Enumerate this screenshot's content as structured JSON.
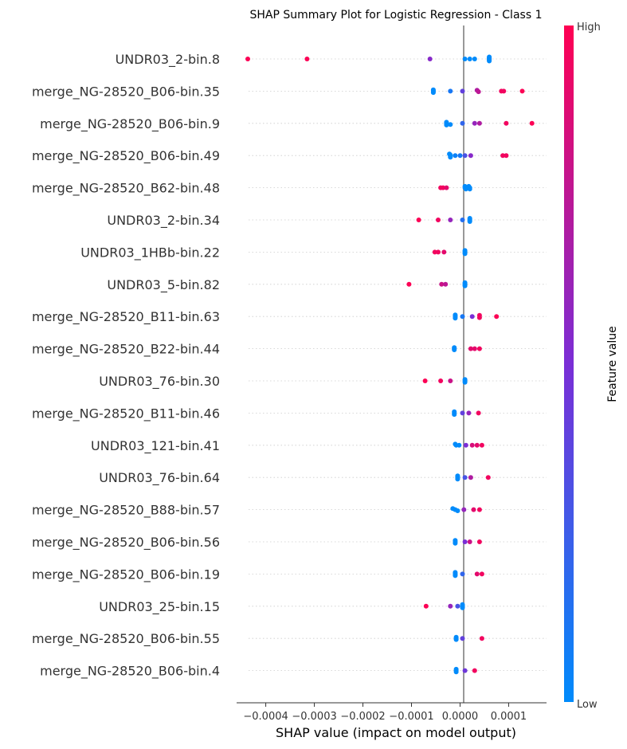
{
  "chart_data": {
    "type": "scatter",
    "title": "SHAP Summary Plot for Logistic Regression - Class 1",
    "xlabel": "SHAP value (impact on model output)",
    "xlim": [
      -0.00046,
      0.000178
    ],
    "xticks": [
      {
        "value": -0.0004,
        "label": "−0.0004"
      },
      {
        "value": -0.0003,
        "label": "−0.0003"
      },
      {
        "value": -0.0002,
        "label": "−0.0002"
      },
      {
        "value": -0.0001,
        "label": "−0.0001"
      },
      {
        "value": 0.0,
        "label": "0.0000"
      },
      {
        "value": 0.0001,
        "label": "0.0001"
      }
    ],
    "colorbar": {
      "title": "Feature value",
      "high_label": "High",
      "low_label": "Low",
      "low_color": "#008bfb",
      "high_color": "#ff0052"
    },
    "features": [
      {
        "name": "UNDR03_2-bin.8",
        "points": [
          [
            -0.000437,
            0.99,
            0
          ],
          [
            -0.000315,
            0.99,
            0
          ],
          [
            -6.2e-05,
            0.55,
            0
          ],
          [
            1e-05,
            0.0,
            0
          ],
          [
            2e-05,
            0.0,
            0
          ],
          [
            3e-05,
            0.0,
            0
          ],
          [
            6e-05,
            0.0,
            -0.12
          ],
          [
            6e-05,
            0.0,
            -0.06
          ],
          [
            6e-05,
            0.0,
            0
          ],
          [
            6e-05,
            0.0,
            0.06
          ],
          [
            6e-05,
            0.0,
            0.12
          ],
          [
            6e-05,
            0.0,
            -0.18
          ],
          [
            6e-05,
            0.0,
            0.18
          ]
        ]
      },
      {
        "name": "merge_NG-28520_B06-bin.35",
        "points": [
          [
            -5.5e-05,
            0.0,
            -0.12
          ],
          [
            -5.5e-05,
            0.0,
            -0.04
          ],
          [
            -5.5e-05,
            0.0,
            0.04
          ],
          [
            -5.5e-05,
            0.0,
            0.12
          ],
          [
            -2e-05,
            0.1,
            0
          ],
          [
            5e-06,
            0.4,
            0
          ],
          [
            3.5e-05,
            0.7,
            -0.08
          ],
          [
            3.8e-05,
            0.75,
            0.05
          ],
          [
            8.5e-05,
            0.95,
            0
          ],
          [
            9e-05,
            0.95,
            0
          ],
          [
            0.000128,
            0.99,
            0
          ]
        ]
      },
      {
        "name": "merge_NG-28520_B06-bin.9",
        "points": [
          [
            -2.8e-05,
            0.0,
            -0.1
          ],
          [
            -2.8e-05,
            0.0,
            0
          ],
          [
            -2e-05,
            0.0,
            0.1
          ],
          [
            -2.8e-05,
            0.0,
            0.15
          ],
          [
            5e-06,
            0.2,
            0
          ],
          [
            3e-05,
            0.6,
            0
          ],
          [
            4e-05,
            0.7,
            0
          ],
          [
            9.5e-05,
            0.95,
            0
          ],
          [
            0.000148,
            0.99,
            0
          ]
        ]
      },
      {
        "name": "merge_NG-28520_B06-bin.49",
        "points": [
          [
            -2.2e-05,
            0.0,
            -0.14
          ],
          [
            -2e-05,
            0.0,
            -0.05
          ],
          [
            -2e-05,
            0.0,
            0.05
          ],
          [
            -2e-05,
            0.0,
            0.14
          ],
          [
            -1e-05,
            0.05,
            0
          ],
          [
            0.0,
            0.1,
            0
          ],
          [
            1e-05,
            0.3,
            0
          ],
          [
            2.2e-05,
            0.55,
            0
          ],
          [
            8.8e-05,
            0.95,
            0
          ],
          [
            9.5e-05,
            0.95,
            0
          ]
        ]
      },
      {
        "name": "merge_NG-28520_B62-bin.48",
        "points": [
          [
            -4e-05,
            0.95,
            0
          ],
          [
            -3.5e-05,
            0.95,
            0
          ],
          [
            -2.8e-05,
            0.9,
            0
          ],
          [
            1e-05,
            0.0,
            -0.12
          ],
          [
            1.8e-05,
            0.0,
            -0.12
          ],
          [
            1e-05,
            0.0,
            0
          ],
          [
            2e-05,
            0.0,
            0
          ],
          [
            1.2e-05,
            0.0,
            0.12
          ],
          [
            2e-05,
            0.0,
            0.12
          ]
        ]
      },
      {
        "name": "UNDR03_2-bin.34",
        "points": [
          [
            -8.5e-05,
            0.99,
            0
          ],
          [
            -4.5e-05,
            0.95,
            0
          ],
          [
            -2e-05,
            0.6,
            0
          ],
          [
            5e-06,
            0.15,
            0
          ],
          [
            2e-05,
            0.0,
            -0.14
          ],
          [
            2e-05,
            0.0,
            -0.05
          ],
          [
            2e-05,
            0.0,
            0.05
          ],
          [
            2e-05,
            0.0,
            0.14
          ]
        ]
      },
      {
        "name": "UNDR03_1HBb-bin.22",
        "points": [
          [
            -5.2e-05,
            0.95,
            0
          ],
          [
            -4.5e-05,
            0.95,
            0
          ],
          [
            -3.3e-05,
            0.9,
            0
          ],
          [
            1e-05,
            0.0,
            -0.14
          ],
          [
            1e-05,
            0.0,
            -0.05
          ],
          [
            1e-05,
            0.0,
            0.05
          ],
          [
            1e-05,
            0.0,
            0.14
          ]
        ]
      },
      {
        "name": "UNDR03_5-bin.82",
        "points": [
          [
            -0.000105,
            0.99,
            0
          ],
          [
            -3.8e-05,
            0.8,
            0
          ],
          [
            -3e-05,
            0.75,
            0
          ],
          [
            1e-05,
            0.0,
            -0.14
          ],
          [
            1e-05,
            0.0,
            -0.05
          ],
          [
            1e-05,
            0.0,
            0.05
          ],
          [
            1e-05,
            0.0,
            0.14
          ]
        ]
      },
      {
        "name": "merge_NG-28520_B11-bin.63",
        "points": [
          [
            -1e-05,
            0.0,
            -0.14
          ],
          [
            -1e-05,
            0.0,
            -0.05
          ],
          [
            -1e-05,
            0.0,
            0.05
          ],
          [
            -1e-05,
            0.0,
            0.14
          ],
          [
            5e-06,
            0.1,
            0
          ],
          [
            2.5e-05,
            0.5,
            0
          ],
          [
            4e-05,
            0.95,
            -0.1
          ],
          [
            4e-05,
            0.95,
            0.1
          ],
          [
            7.5e-05,
            0.99,
            0
          ]
        ]
      },
      {
        "name": "merge_NG-28520_B22-bin.44",
        "points": [
          [
            -1.2e-05,
            0.0,
            -0.1
          ],
          [
            -1.2e-05,
            0.0,
            0
          ],
          [
            -1.2e-05,
            0.0,
            0.1
          ],
          [
            2.2e-05,
            0.9,
            0
          ],
          [
            3e-05,
            0.9,
            0
          ],
          [
            4e-05,
            0.95,
            0
          ]
        ]
      },
      {
        "name": "UNDR03_76-bin.30",
        "points": [
          [
            -7.2e-05,
            0.99,
            0
          ],
          [
            -4e-05,
            0.95,
            0
          ],
          [
            -2e-05,
            0.8,
            0
          ],
          [
            1e-05,
            0.0,
            -0.12
          ],
          [
            1e-05,
            0.0,
            0
          ],
          [
            1e-05,
            0.0,
            0.12
          ]
        ]
      },
      {
        "name": "merge_NG-28520_B11-bin.46",
        "points": [
          [
            -1.2e-05,
            0.0,
            -0.12
          ],
          [
            -1.2e-05,
            0.0,
            0
          ],
          [
            -1.2e-05,
            0.0,
            0.12
          ],
          [
            5e-06,
            0.4,
            0
          ],
          [
            1.8e-05,
            0.6,
            0
          ],
          [
            3.8e-05,
            0.95,
            0
          ]
        ]
      },
      {
        "name": "UNDR03_121-bin.41",
        "points": [
          [
            -1e-05,
            0.0,
            -0.1
          ],
          [
            -8e-06,
            0.0,
            0
          ],
          [
            -2e-06,
            0.0,
            0
          ],
          [
            1.2e-05,
            0.5,
            0
          ],
          [
            2.5e-05,
            0.85,
            0
          ],
          [
            3.5e-05,
            0.9,
            0
          ],
          [
            4.5e-05,
            0.95,
            0
          ]
        ]
      },
      {
        "name": "UNDR03_76-bin.64",
        "points": [
          [
            -5e-06,
            0.0,
            -0.14
          ],
          [
            -5e-06,
            0.0,
            -0.05
          ],
          [
            -5e-06,
            0.0,
            0.05
          ],
          [
            -5e-06,
            0.0,
            0.14
          ],
          [
            1e-05,
            0.3,
            0
          ],
          [
            2.2e-05,
            0.7,
            0
          ],
          [
            5.8e-05,
            0.95,
            0
          ]
        ]
      },
      {
        "name": "merge_NG-28520_B88-bin.57",
        "points": [
          [
            -1.5e-05,
            0.0,
            -0.1
          ],
          [
            -1e-05,
            0.0,
            0
          ],
          [
            -5e-06,
            0.0,
            0.1
          ],
          [
            8e-06,
            0.6,
            0
          ],
          [
            2.8e-05,
            0.9,
            0
          ],
          [
            4e-05,
            0.95,
            0
          ]
        ]
      },
      {
        "name": "merge_NG-28520_B06-bin.56",
        "points": [
          [
            -1e-05,
            0.0,
            -0.12
          ],
          [
            -1e-05,
            0.0,
            0
          ],
          [
            -1e-05,
            0.0,
            0.12
          ],
          [
            1e-05,
            0.5,
            0
          ],
          [
            2e-05,
            0.8,
            0
          ],
          [
            4e-05,
            0.95,
            0
          ]
        ]
      },
      {
        "name": "merge_NG-28520_B06-bin.19",
        "points": [
          [
            -1e-05,
            0.0,
            -0.14
          ],
          [
            -1e-05,
            0.0,
            -0.05
          ],
          [
            -1e-05,
            0.0,
            0.05
          ],
          [
            -1e-05,
            0.0,
            0.14
          ],
          [
            5e-06,
            0.2,
            0
          ],
          [
            3.5e-05,
            0.9,
            0
          ],
          [
            4.5e-05,
            0.95,
            0
          ]
        ]
      },
      {
        "name": "UNDR03_25-bin.15",
        "points": [
          [
            -7e-05,
            0.99,
            0
          ],
          [
            -2e-05,
            0.6,
            0
          ],
          [
            -5e-06,
            0.3,
            0
          ],
          [
            5e-06,
            0.0,
            -0.14
          ],
          [
            5e-06,
            0.0,
            -0.05
          ],
          [
            5e-06,
            0.0,
            0.05
          ],
          [
            5e-06,
            0.0,
            0.14
          ]
        ]
      },
      {
        "name": "merge_NG-28520_B06-bin.55",
        "points": [
          [
            -8e-06,
            0.0,
            -0.1
          ],
          [
            -8e-06,
            0.0,
            0
          ],
          [
            -8e-06,
            0.0,
            0.1
          ],
          [
            5e-06,
            0.4,
            0
          ],
          [
            4.5e-05,
            0.95,
            0
          ]
        ]
      },
      {
        "name": "merge_NG-28520_B06-bin.4",
        "points": [
          [
            -8e-06,
            0.0,
            -0.12
          ],
          [
            -8e-06,
            0.0,
            0
          ],
          [
            -8e-06,
            0.0,
            0.12
          ],
          [
            1e-05,
            0.45,
            0
          ],
          [
            3e-05,
            0.95,
            0
          ]
        ]
      }
    ]
  }
}
